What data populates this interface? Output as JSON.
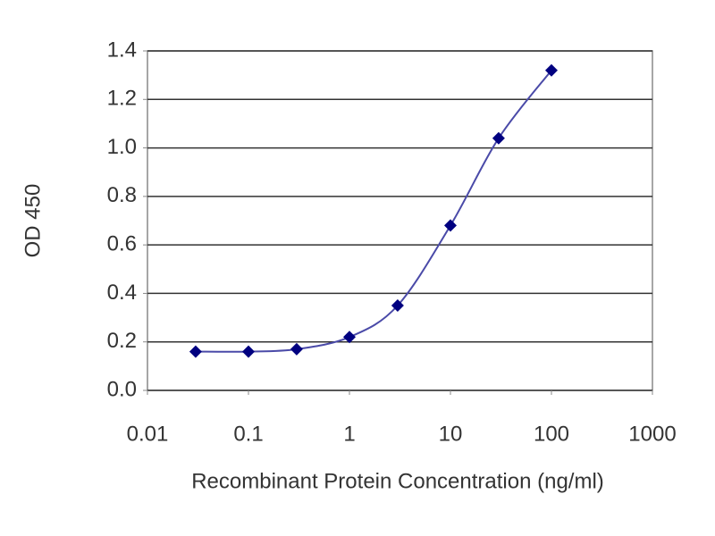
{
  "chart_data": {
    "type": "line",
    "x_label": "Recombinant Protein Concentration (ng/ml)",
    "y_label": "OD 450",
    "x": [
      0.03,
      0.1,
      0.3,
      1,
      3,
      10,
      30,
      100
    ],
    "series": [
      {
        "color": "#000080",
        "values": [
          0.16,
          0.16,
          0.17,
          0.22,
          0.35,
          0.68,
          1.04,
          1.32
        ]
      }
    ],
    "line_color": "#4a4aa8",
    "x_log": true,
    "xlim": [
      0.01,
      1000
    ],
    "xticks": [
      0.01,
      0.1,
      1,
      10,
      100,
      1000
    ],
    "ylim": [
      0,
      1.4
    ],
    "yticks": [
      {
        "value": 0,
        "label": "0.0"
      },
      0.2,
      0.4,
      0.6,
      0.8,
      {
        "value": 1,
        "label": "1.0"
      },
      1.2,
      1.4
    ],
    "grid": true
  }
}
